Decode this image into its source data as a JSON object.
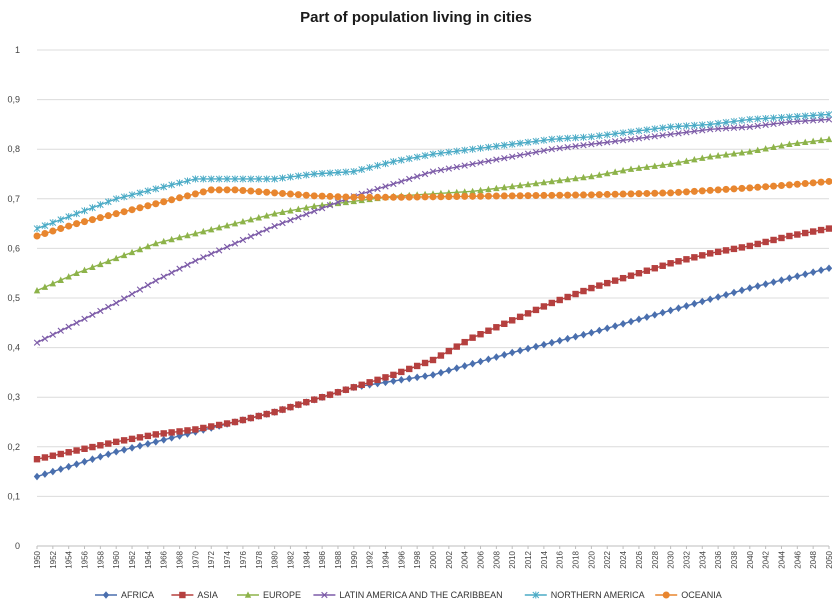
{
  "chart_data": {
    "type": "line",
    "title": "Part of population living in cities",
    "xlabel": "",
    "ylabel": "",
    "ylim": [
      0,
      1
    ],
    "xlim": [
      1950,
      2050
    ],
    "yticks": [
      "0",
      "0,1",
      "0,2",
      "0,3",
      "0,4",
      "0,5",
      "0,6",
      "0,7",
      "0,8",
      "0,9",
      "1"
    ],
    "xticks": [
      "1950",
      "1952",
      "1954",
      "1956",
      "1958",
      "1960",
      "1962",
      "1964",
      "1966",
      "1968",
      "1970",
      "1972",
      "1974",
      "1976",
      "1978",
      "1980",
      "1982",
      "1984",
      "1986",
      "1988",
      "1990",
      "1992",
      "1994",
      "1996",
      "1998",
      "2000",
      "2002",
      "2004",
      "2006",
      "2008",
      "2010",
      "2012",
      "2014",
      "2016",
      "2018",
      "2020",
      "2022",
      "2024",
      "2026",
      "2028",
      "2030",
      "2032",
      "2034",
      "2036",
      "2038",
      "2040",
      "2042",
      "2044",
      "2046",
      "2048",
      "2050"
    ],
    "grid": true,
    "legend_position": "bottom",
    "series": [
      {
        "name": "AFRICA",
        "color": "#4a6fae",
        "marker": "diamond",
        "points": [
          [
            1950,
            0.14
          ],
          [
            1960,
            0.19
          ],
          [
            1970,
            0.23
          ],
          [
            1980,
            0.27
          ],
          [
            1990,
            0.32
          ],
          [
            2000,
            0.345
          ],
          [
            2010,
            0.39
          ],
          [
            2020,
            0.43
          ],
          [
            2030,
            0.475
          ],
          [
            2040,
            0.52
          ],
          [
            2050,
            0.56
          ]
        ]
      },
      {
        "name": "ASIA",
        "color": "#b5403f",
        "marker": "square",
        "points": [
          [
            1950,
            0.175
          ],
          [
            1960,
            0.21
          ],
          [
            1965,
            0.225
          ],
          [
            1970,
            0.235
          ],
          [
            1975,
            0.25
          ],
          [
            1980,
            0.27
          ],
          [
            1985,
            0.295
          ],
          [
            1990,
            0.32
          ],
          [
            1995,
            0.345
          ],
          [
            2000,
            0.375
          ],
          [
            2005,
            0.42
          ],
          [
            2010,
            0.455
          ],
          [
            2015,
            0.49
          ],
          [
            2020,
            0.52
          ],
          [
            2025,
            0.545
          ],
          [
            2030,
            0.57
          ],
          [
            2035,
            0.59
          ],
          [
            2040,
            0.605
          ],
          [
            2045,
            0.625
          ],
          [
            2050,
            0.64
          ]
        ]
      },
      {
        "name": "EUROPE",
        "color": "#8db34a",
        "marker": "triangle",
        "points": [
          [
            1950,
            0.515
          ],
          [
            1955,
            0.55
          ],
          [
            1960,
            0.58
          ],
          [
            1965,
            0.61
          ],
          [
            1970,
            0.63
          ],
          [
            1975,
            0.65
          ],
          [
            1980,
            0.67
          ],
          [
            1985,
            0.685
          ],
          [
            1990,
            0.695
          ],
          [
            1995,
            0.705
          ],
          [
            2000,
            0.71
          ],
          [
            2005,
            0.715
          ],
          [
            2010,
            0.725
          ],
          [
            2015,
            0.735
          ],
          [
            2020,
            0.745
          ],
          [
            2025,
            0.76
          ],
          [
            2030,
            0.77
          ],
          [
            2035,
            0.785
          ],
          [
            2040,
            0.795
          ],
          [
            2045,
            0.81
          ],
          [
            2050,
            0.82
          ]
        ]
      },
      {
        "name": "LATIN AMERICA AND THE CARIBBEAN",
        "color": "#7d5ca8",
        "marker": "x",
        "points": [
          [
            1950,
            0.41
          ],
          [
            1955,
            0.45
          ],
          [
            1960,
            0.49
          ],
          [
            1965,
            0.535
          ],
          [
            1970,
            0.575
          ],
          [
            1975,
            0.61
          ],
          [
            1980,
            0.645
          ],
          [
            1985,
            0.675
          ],
          [
            1990,
            0.705
          ],
          [
            1995,
            0.73
          ],
          [
            2000,
            0.755
          ],
          [
            2005,
            0.77
          ],
          [
            2010,
            0.785
          ],
          [
            2015,
            0.8
          ],
          [
            2020,
            0.81
          ],
          [
            2025,
            0.82
          ],
          [
            2030,
            0.83
          ],
          [
            2035,
            0.84
          ],
          [
            2040,
            0.845
          ],
          [
            2045,
            0.855
          ],
          [
            2050,
            0.86
          ]
        ]
      },
      {
        "name": "NORTHERN AMERICA",
        "color": "#4babc6",
        "marker": "star",
        "points": [
          [
            1950,
            0.64
          ],
          [
            1955,
            0.67
          ],
          [
            1960,
            0.7
          ],
          [
            1965,
            0.72
          ],
          [
            1970,
            0.74
          ],
          [
            1975,
            0.74
          ],
          [
            1980,
            0.74
          ],
          [
            1985,
            0.75
          ],
          [
            1990,
            0.755
          ],
          [
            1995,
            0.775
          ],
          [
            2000,
            0.79
          ],
          [
            2005,
            0.8
          ],
          [
            2010,
            0.81
          ],
          [
            2015,
            0.82
          ],
          [
            2020,
            0.825
          ],
          [
            2025,
            0.835
          ],
          [
            2030,
            0.845
          ],
          [
            2035,
            0.85
          ],
          [
            2040,
            0.86
          ],
          [
            2045,
            0.865
          ],
          [
            2050,
            0.87
          ]
        ]
      },
      {
        "name": "OCEANIA",
        "color": "#e8862f",
        "marker": "circle",
        "points": [
          [
            1950,
            0.625
          ],
          [
            1955,
            0.65
          ],
          [
            1960,
            0.67
          ],
          [
            1965,
            0.69
          ],
          [
            1970,
            0.71
          ],
          [
            1972,
            0.718
          ],
          [
            1975,
            0.718
          ],
          [
            1980,
            0.712
          ],
          [
            1985,
            0.706
          ],
          [
            1990,
            0.703
          ],
          [
            1995,
            0.703
          ],
          [
            2000,
            0.704
          ],
          [
            2010,
            0.706
          ],
          [
            2020,
            0.708
          ],
          [
            2030,
            0.712
          ],
          [
            2040,
            0.722
          ],
          [
            2045,
            0.728
          ],
          [
            2050,
            0.735
          ]
        ]
      }
    ]
  }
}
